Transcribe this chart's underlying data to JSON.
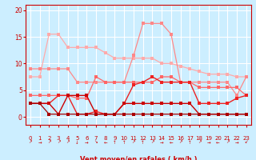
{
  "x": [
    0,
    1,
    2,
    3,
    4,
    5,
    6,
    7,
    8,
    9,
    10,
    11,
    12,
    13,
    14,
    15,
    16,
    17,
    18,
    19,
    20,
    21,
    22,
    23
  ],
  "series": [
    {
      "name": "rafales_max",
      "color": "#ffaaaa",
      "linewidth": 0.9,
      "markersize": 2.5,
      "y": [
        7.5,
        7.5,
        15.5,
        15.5,
        13.0,
        13.0,
        13.0,
        13.0,
        12.0,
        11.0,
        11.0,
        11.0,
        11.0,
        11.0,
        10.0,
        10.0,
        9.5,
        9.0,
        8.5,
        8.0,
        8.0,
        8.0,
        7.5,
        7.5
      ]
    },
    {
      "name": "rafales_mid",
      "color": "#ff8888",
      "linewidth": 0.9,
      "markersize": 2.5,
      "y": [
        9.0,
        9.0,
        9.0,
        9.0,
        9.0,
        6.5,
        6.5,
        6.5,
        6.5,
        6.5,
        6.5,
        11.5,
        17.5,
        17.5,
        17.5,
        15.5,
        6.5,
        6.5,
        6.5,
        6.5,
        6.5,
        6.5,
        4.0,
        7.5
      ]
    },
    {
      "name": "vent_hi",
      "color": "#ff6666",
      "linewidth": 0.9,
      "markersize": 2.5,
      "y": [
        4.0,
        4.0,
        4.0,
        4.0,
        4.0,
        3.5,
        3.5,
        7.5,
        6.5,
        6.5,
        6.5,
        6.5,
        6.5,
        6.5,
        7.5,
        7.5,
        6.5,
        6.5,
        5.5,
        5.5,
        5.5,
        5.5,
        5.5,
        4.0
      ]
    },
    {
      "name": "vent_mid",
      "color": "#ee2222",
      "linewidth": 1.0,
      "markersize": 2.5,
      "y": [
        2.5,
        2.5,
        2.5,
        4.0,
        4.0,
        0.5,
        0.5,
        1.0,
        0.5,
        0.5,
        2.5,
        6.0,
        6.5,
        7.5,
        6.5,
        6.5,
        6.5,
        6.5,
        2.5,
        2.5,
        2.5,
        2.5,
        3.5,
        4.0
      ]
    },
    {
      "name": "vent_lo",
      "color": "#cc0000",
      "linewidth": 1.0,
      "markersize": 2.5,
      "y": [
        2.5,
        2.5,
        2.5,
        0.5,
        4.0,
        4.0,
        4.0,
        0.5,
        0.5,
        0.5,
        2.5,
        2.5,
        2.5,
        2.5,
        2.5,
        2.5,
        2.5,
        2.5,
        0.5,
        0.5,
        0.5,
        0.5,
        0.5,
        0.5
      ]
    },
    {
      "name": "vent_min",
      "color": "#aa0000",
      "linewidth": 0.9,
      "markersize": 2.5,
      "y": [
        2.5,
        2.5,
        0.5,
        0.5,
        0.5,
        0.5,
        0.5,
        0.5,
        0.5,
        0.5,
        0.5,
        0.5,
        0.5,
        0.5,
        0.5,
        0.5,
        0.5,
        0.5,
        0.5,
        0.5,
        0.5,
        0.5,
        0.5,
        0.5
      ]
    }
  ],
  "arrows": [
    "↗",
    "→",
    "↗",
    "↗",
    "↗",
    "↓",
    "→",
    "↘",
    "←",
    "↑",
    "↑",
    "↗",
    "↑",
    "↗",
    "→",
    "←",
    "↗",
    "↑",
    "↗",
    "→",
    "←",
    "↗",
    "→",
    "↙"
  ],
  "xlabel": "Vent moyen/en rafales ( km/h )",
  "xlim": [
    -0.5,
    23.5
  ],
  "ylim": [
    -1.5,
    21
  ],
  "yticks": [
    0,
    5,
    10,
    15,
    20
  ],
  "xticks": [
    0,
    1,
    2,
    3,
    4,
    5,
    6,
    7,
    8,
    9,
    10,
    11,
    12,
    13,
    14,
    15,
    16,
    17,
    18,
    19,
    20,
    21,
    22,
    23
  ],
  "bg_color": "#cceeff",
  "grid_color": "#ffffff",
  "xlabel_color": "#cc0000",
  "tick_color": "#cc0000"
}
